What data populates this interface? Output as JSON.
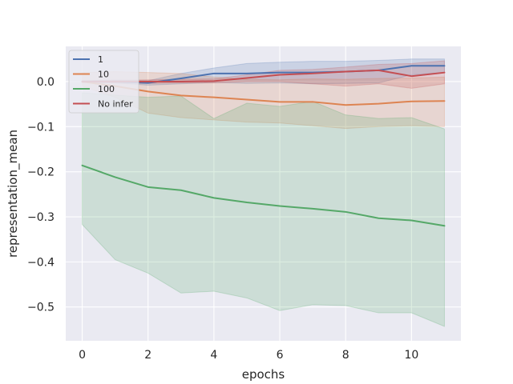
{
  "chart_data": {
    "type": "line",
    "title": "",
    "xlabel": "epochs",
    "ylabel": "representation_mean",
    "xlim": [
      -0.5,
      11.5
    ],
    "ylim": [
      -0.575,
      0.078
    ],
    "xticks": [
      0,
      2,
      4,
      6,
      8,
      10
    ],
    "xtick_labels": [
      "0",
      "2",
      "4",
      "6",
      "8",
      "10"
    ],
    "yticks": [
      0.0,
      -0.1,
      -0.2,
      -0.3,
      -0.4,
      -0.5
    ],
    "ytick_labels": [
      "0.0",
      "−0.1",
      "−0.2",
      "−0.3",
      "−0.4",
      "−0.5"
    ],
    "grid": true,
    "legend_position": "top-left",
    "x": [
      0,
      1,
      2,
      3,
      4,
      5,
      6,
      7,
      8,
      9,
      10,
      11
    ],
    "series": [
      {
        "name": "1",
        "color": "#4c72b0",
        "values": [
          0.0,
          0.0,
          -0.003,
          0.007,
          0.018,
          0.018,
          0.02,
          0.02,
          0.022,
          0.025,
          0.035,
          0.035
        ],
        "lower": [
          -0.002,
          -0.003,
          -0.008,
          -0.005,
          -0.002,
          -0.004,
          -0.003,
          -0.005,
          -0.004,
          -0.003,
          0.015,
          0.02
        ],
        "upper": [
          0.002,
          0.003,
          0.002,
          0.018,
          0.03,
          0.04,
          0.043,
          0.045,
          0.045,
          0.047,
          0.05,
          0.05
        ]
      },
      {
        "name": "10",
        "color": "#dd8452",
        "values": [
          0.0,
          -0.01,
          -0.022,
          -0.031,
          -0.035,
          -0.04,
          -0.045,
          -0.045,
          -0.052,
          -0.049,
          -0.044,
          -0.043
        ],
        "lower": [
          -0.01,
          -0.035,
          -0.07,
          -0.08,
          -0.085,
          -0.09,
          -0.092,
          -0.098,
          -0.104,
          -0.1,
          -0.098,
          -0.1
        ],
        "upper": [
          0.02,
          0.022,
          0.02,
          0.018,
          0.01,
          0.005,
          0.004,
          0.006,
          0.005,
          0.007,
          0.008,
          0.01
        ]
      },
      {
        "name": "100",
        "color": "#55a868",
        "values": [
          -0.186,
          -0.212,
          -0.234,
          -0.241,
          -0.258,
          -0.268,
          -0.276,
          -0.282,
          -0.289,
          -0.303,
          -0.308,
          -0.32
        ],
        "lower": [
          -0.317,
          -0.395,
          -0.425,
          -0.469,
          -0.465,
          -0.48,
          -0.508,
          -0.495,
          -0.497,
          -0.513,
          -0.513,
          -0.543
        ],
        "upper": [
          -0.025,
          -0.03,
          -0.035,
          -0.032,
          -0.082,
          -0.048,
          -0.055,
          -0.044,
          -0.074,
          -0.082,
          -0.08,
          -0.105
        ]
      },
      {
        "name": "No infer",
        "color": "#c44e52",
        "values": [
          0.0,
          0.0,
          0.0,
          0.0,
          0.001,
          0.008,
          0.015,
          0.018,
          0.022,
          0.025,
          0.012,
          0.02
        ],
        "lower": [
          -0.002,
          -0.003,
          -0.004,
          -0.003,
          -0.003,
          0.0,
          0.0,
          -0.005,
          -0.01,
          -0.005,
          -0.015,
          -0.005
        ],
        "upper": [
          0.002,
          0.003,
          0.004,
          0.005,
          0.006,
          0.015,
          0.025,
          0.027,
          0.032,
          0.038,
          0.04,
          0.046
        ]
      }
    ]
  }
}
